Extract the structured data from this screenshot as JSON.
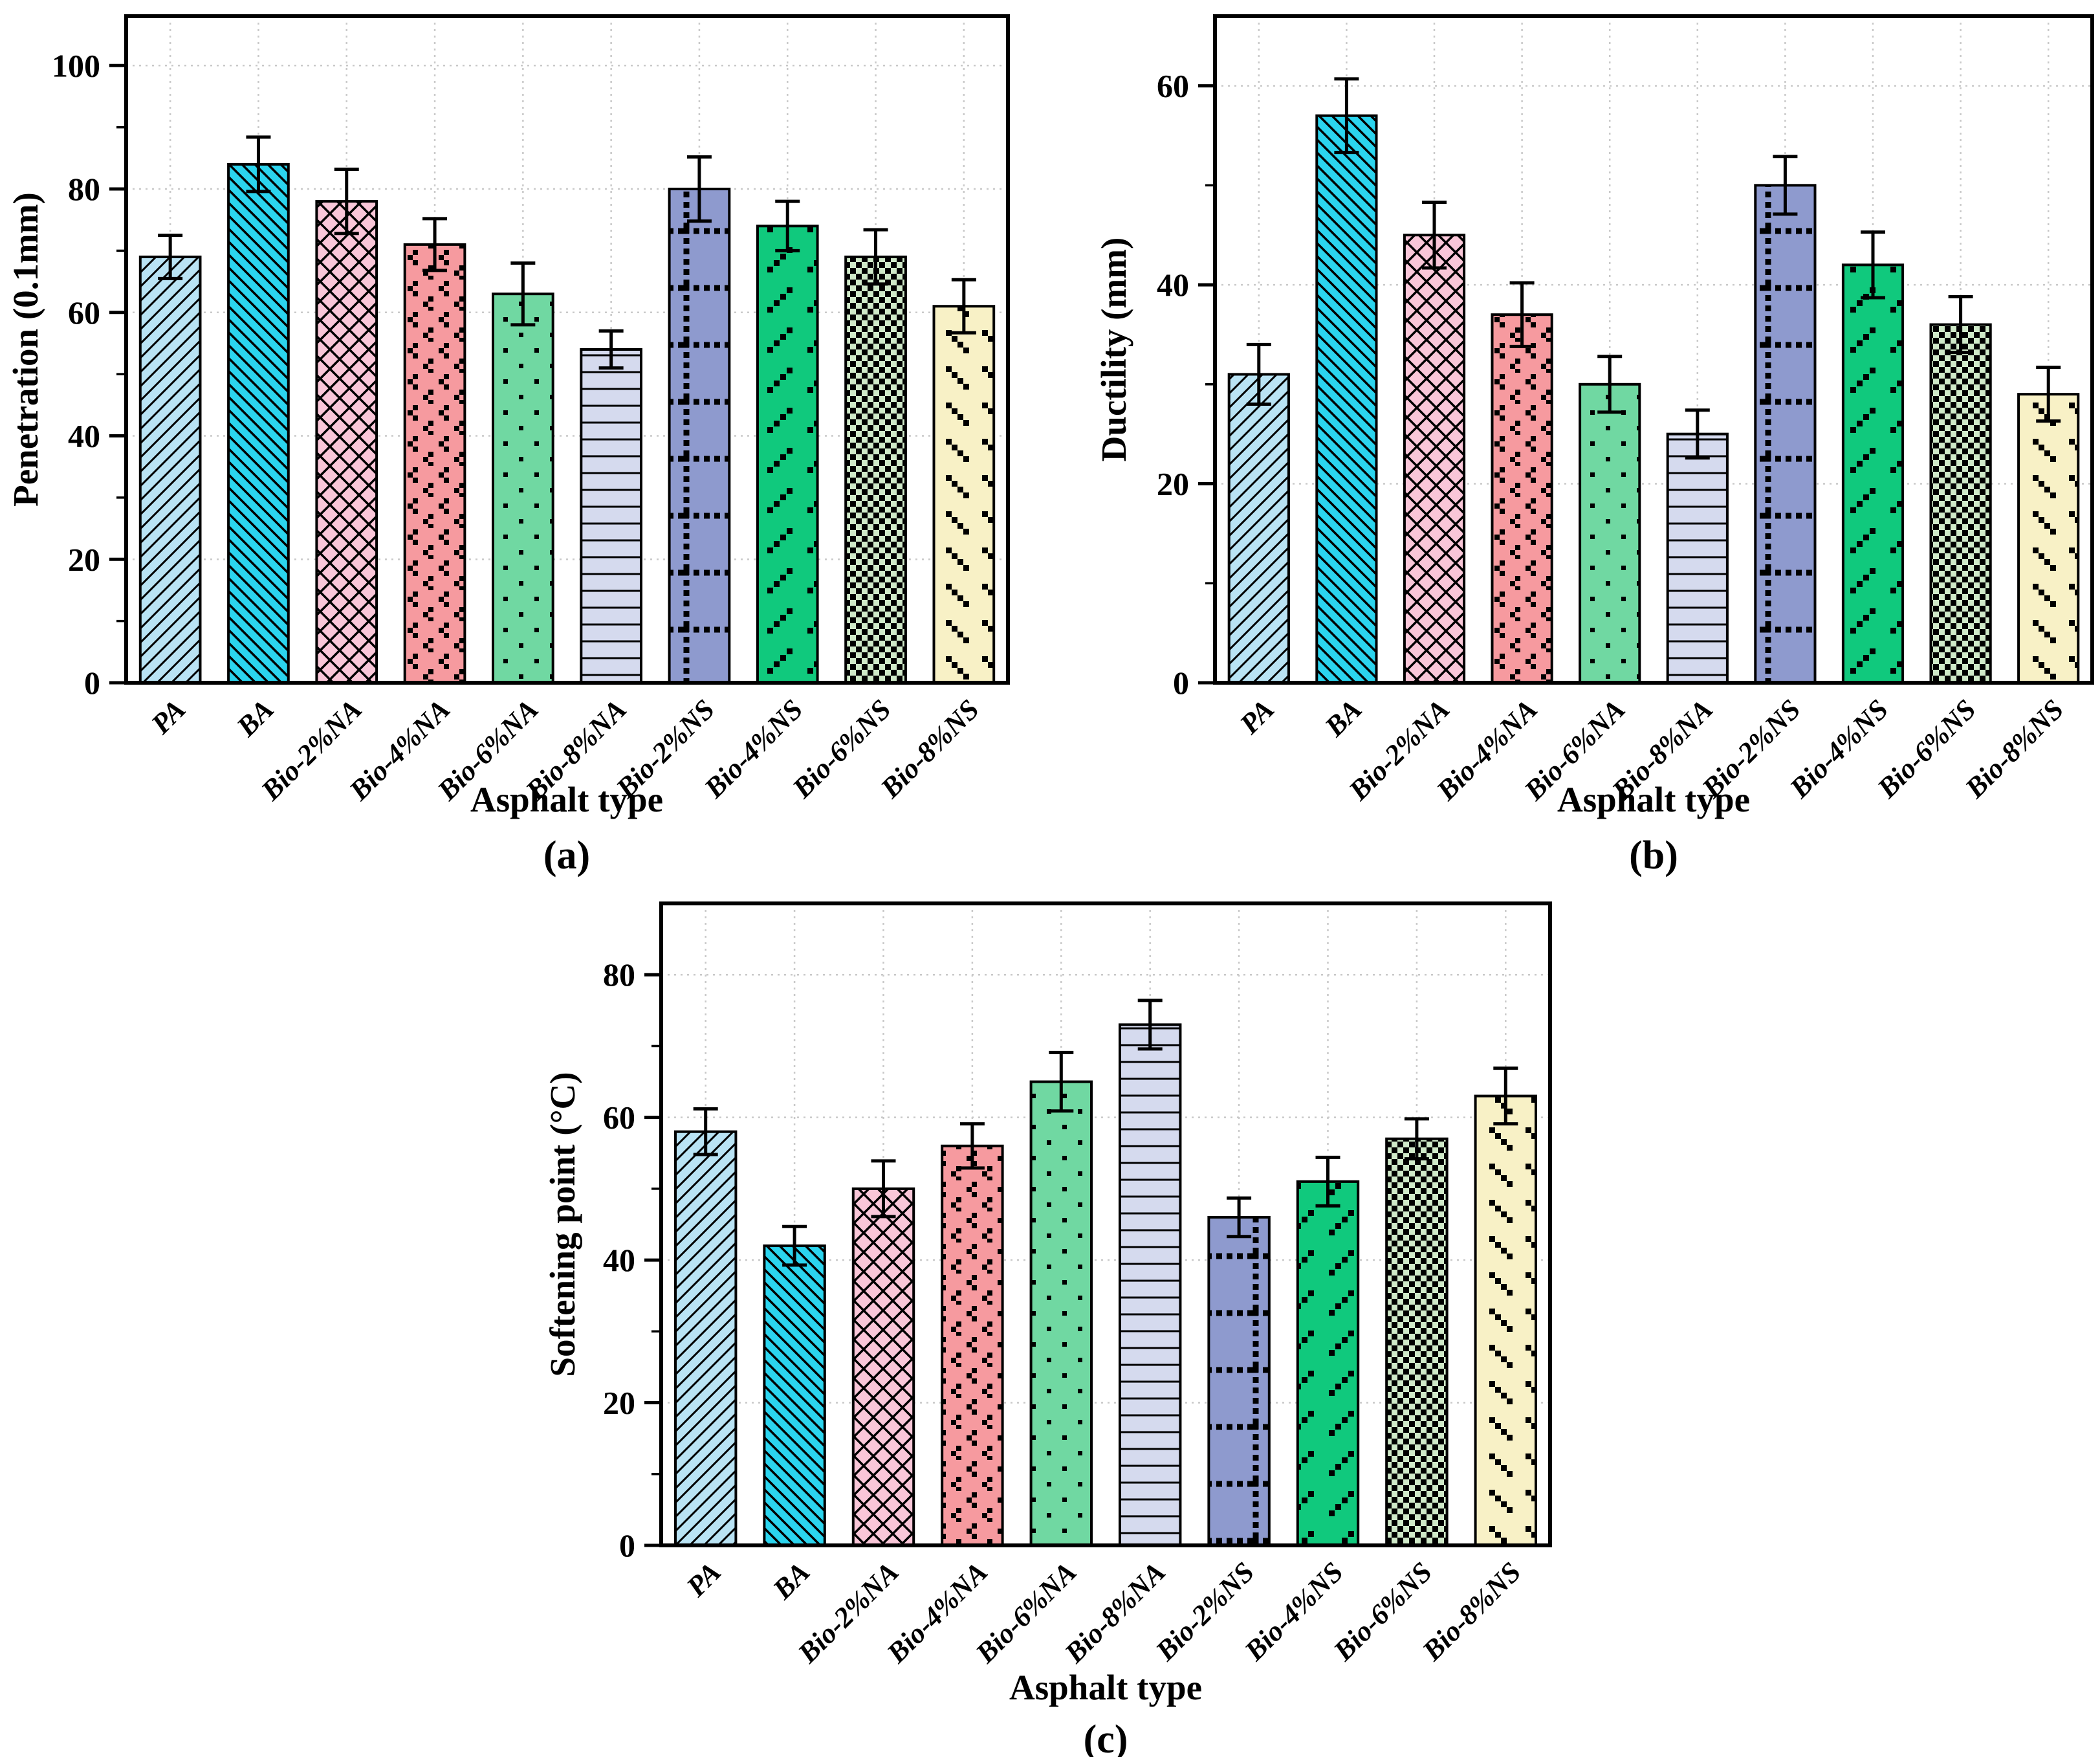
{
  "figure": {
    "xlabel": "Asphalt type",
    "background": "#ffffff",
    "axis_color": "#000000",
    "grid_color": "#c9c9c9",
    "error_bar_color": "#000000",
    "categories": [
      "PA",
      "BA",
      "Bio-2%NA",
      "Bio-4%NA",
      "Bio-6%NA",
      "Bio-8%NA",
      "Bio-2%NS",
      "Bio-4%NS",
      "Bio-6%NS",
      "Bio-8%NS"
    ],
    "bar_styles": [
      {
        "category": "PA",
        "fill": "#b9e3f4",
        "pattern": "diagonal-forward-hatch"
      },
      {
        "category": "BA",
        "fill": "#2bd4ee",
        "pattern": "diagonal-backward-hatch"
      },
      {
        "category": "Bio-2%NA",
        "fill": "#f9c6d8",
        "pattern": "diamond-crosshatch"
      },
      {
        "category": "Bio-4%NA",
        "fill": "#f69a9f",
        "pattern": "square-cluster-dots"
      },
      {
        "category": "Bio-6%NA",
        "fill": "#70d8a2",
        "pattern": "sparse-square-dots"
      },
      {
        "category": "Bio-8%NA",
        "fill": "#d5daee",
        "pattern": "horizontal-lines"
      },
      {
        "category": "Bio-2%NS",
        "fill": "#8e9ace",
        "pattern": "dotted-grid"
      },
      {
        "category": "Bio-4%NS",
        "fill": "#10c97d",
        "pattern": "diagonal-forward-dashes"
      },
      {
        "category": "Bio-6%NS",
        "fill": "#cfe9c8",
        "pattern": "checkerboard"
      },
      {
        "category": "Bio-8%NS",
        "fill": "#f8f1c6",
        "pattern": "diagonal-backward-dashes"
      }
    ]
  },
  "chart_data": [
    {
      "type": "bar",
      "panel_caption": "(a)",
      "title": "",
      "xlabel": "Asphalt type",
      "ylabel": "Penetration (0.1mm)",
      "categories": [
        "PA",
        "BA",
        "Bio-2%NA",
        "Bio-4%NA",
        "Bio-6%NA",
        "Bio-8%NA",
        "Bio-2%NS",
        "Bio-4%NS",
        "Bio-6%NS",
        "Bio-8%NS"
      ],
      "values": [
        69,
        84,
        78,
        71,
        63,
        54,
        80,
        74,
        69,
        61
      ],
      "errors": [
        3.5,
        4.4,
        5.2,
        4.2,
        5.0,
        3.0,
        5.2,
        4.0,
        4.4,
        4.3
      ],
      "ylim": [
        0,
        108
      ],
      "yticks": [
        0,
        20,
        40,
        60,
        80,
        100
      ],
      "minor_yticks": [
        10,
        30,
        50,
        70,
        90
      ],
      "grid": true,
      "legend_position": "none"
    },
    {
      "type": "bar",
      "panel_caption": "(b)",
      "title": "",
      "xlabel": "Asphalt type",
      "ylabel": "Ductility (mm)",
      "categories": [
        "PA",
        "BA",
        "Bio-2%NA",
        "Bio-4%NA",
        "Bio-6%NA",
        "Bio-8%NA",
        "Bio-2%NS",
        "Bio-4%NS",
        "Bio-6%NS",
        "Bio-8%NS"
      ],
      "values": [
        31,
        57,
        45,
        37,
        30,
        25,
        50,
        42,
        36,
        29
      ],
      "errors": [
        3.0,
        3.7,
        3.3,
        3.2,
        2.8,
        2.4,
        2.9,
        3.3,
        2.8,
        2.7
      ],
      "ylim": [
        0,
        67
      ],
      "yticks": [
        0,
        20,
        40,
        60
      ],
      "minor_yticks": [
        10,
        30,
        50
      ],
      "grid": true,
      "legend_position": "none"
    },
    {
      "type": "bar",
      "panel_caption": "(c)",
      "title": "",
      "xlabel": "Asphalt type",
      "ylabel": "Softening point (°C)",
      "categories": [
        "PA",
        "BA",
        "Bio-2%NA",
        "Bio-4%NA",
        "Bio-6%NA",
        "Bio-8%NA",
        "Bio-2%NS",
        "Bio-4%NS",
        "Bio-6%NS",
        "Bio-8%NS"
      ],
      "values": [
        58,
        42,
        50,
        56,
        65,
        73,
        46,
        51,
        57,
        63
      ],
      "errors": [
        3.2,
        2.7,
        3.9,
        3.1,
        4.1,
        3.4,
        2.7,
        3.4,
        2.8,
        3.9
      ],
      "ylim": [
        0,
        90
      ],
      "yticks": [
        0,
        20,
        40,
        60,
        80
      ],
      "minor_yticks": [
        10,
        30,
        50,
        70
      ],
      "grid": true,
      "legend_position": "none"
    }
  ]
}
